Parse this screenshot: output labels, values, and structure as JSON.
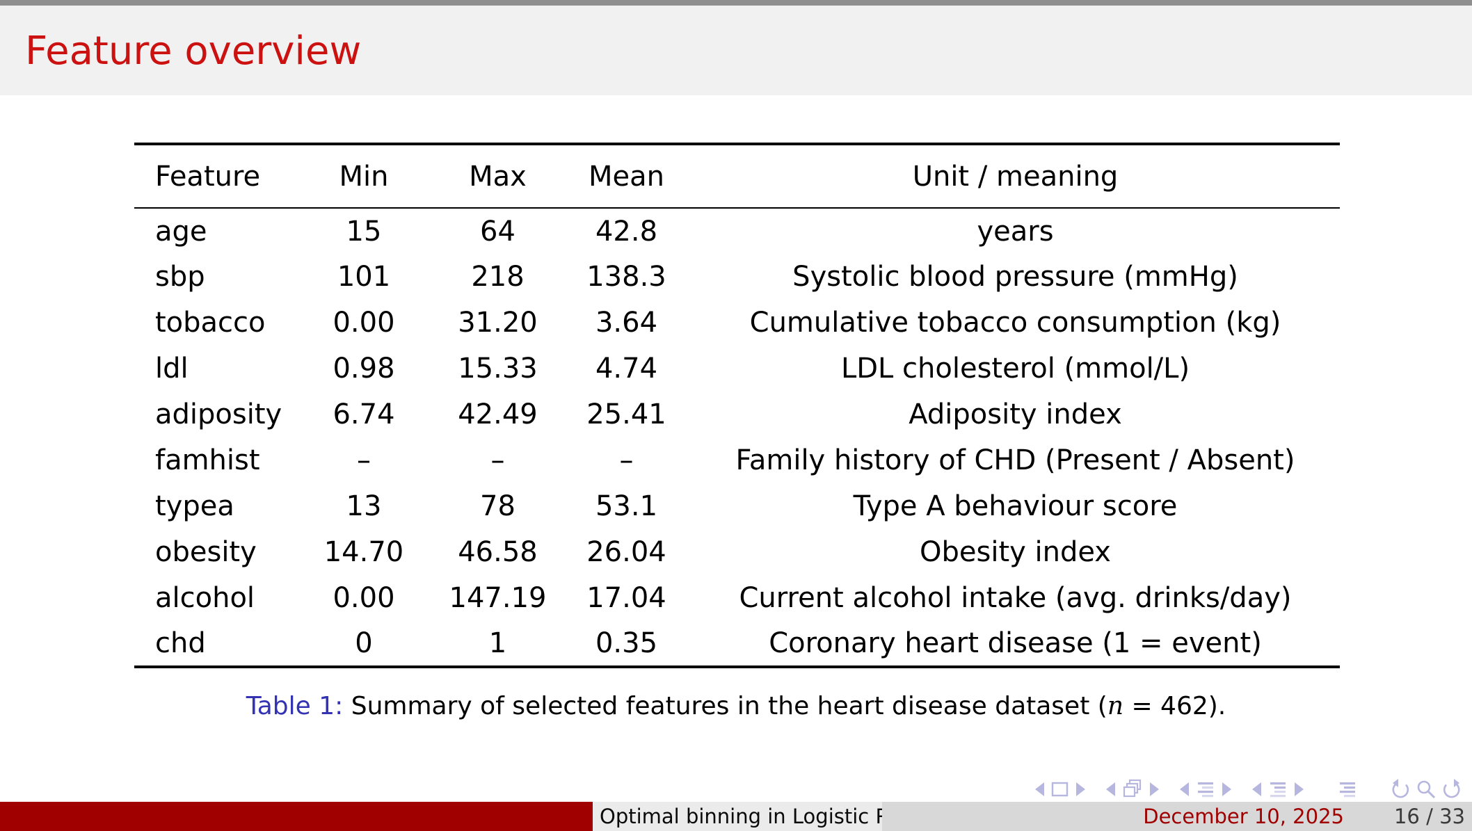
{
  "slide": {
    "title": "Feature overview"
  },
  "table": {
    "columns": [
      "Feature",
      "Min",
      "Max",
      "Mean",
      "Unit / meaning"
    ],
    "rows": [
      [
        "age",
        "15",
        "64",
        "42.8",
        "years"
      ],
      [
        "sbp",
        "101",
        "218",
        "138.3",
        "Systolic blood pressure (mmHg)"
      ],
      [
        "tobacco",
        "0.00",
        "31.20",
        "3.64",
        "Cumulative tobacco consumption (kg)"
      ],
      [
        "ldl",
        "0.98",
        "15.33",
        "4.74",
        "LDL cholesterol (mmol/L)"
      ],
      [
        "adiposity",
        "6.74",
        "42.49",
        "25.41",
        "Adiposity index"
      ],
      [
        "famhist",
        "–",
        "–",
        "–",
        "Family history of CHD (Present / Absent)"
      ],
      [
        "typea",
        "13",
        "78",
        "53.1",
        "Type A behaviour score"
      ],
      [
        "obesity",
        "14.70",
        "46.58",
        "26.04",
        "Obesity index"
      ],
      [
        "alcohol",
        "0.00",
        "147.19",
        "17.04",
        "Current alcohol intake (avg. drinks/day)"
      ],
      [
        "chd",
        "0",
        "1",
        "0.35",
        "Coronary heart disease (1 = event)"
      ]
    ]
  },
  "caption": {
    "label": "Table 1:",
    "text_prefix": " Summary of selected features in the heart disease dataset (",
    "variable": "n",
    "text_suffix": " = 462)."
  },
  "footer": {
    "title_text": "Optimal binning in Logistic Reg",
    "date": "December 10, 2025",
    "page": "16 / 33"
  },
  "nav_icons": [
    "prev-slide-arrow-icon",
    "slide-icon",
    "next-slide-arrow-icon",
    "prev-frame-arrow-icon",
    "frames-icon",
    "next-frame-arrow-icon",
    "prev-section-arrow-icon",
    "section-list-icon",
    "next-section-arrow-icon",
    "prev-subsection-arrow-icon",
    "subsection-list-icon",
    "next-subsection-arrow-icon",
    "appendix-list-icon",
    "go-back-icon",
    "search-icon",
    "go-forward-icon"
  ],
  "colors": {
    "top_strip": "#8f8f8f",
    "header_band": "#f1f1f1",
    "title_red": "#cc1111",
    "caption_blue": "#3333b3",
    "bar_red": "#a00000",
    "foot_gray_light": "#ebebeb",
    "foot_gray_dark": "#d8d8d8",
    "nav_lavender": "#9b9bd4"
  }
}
